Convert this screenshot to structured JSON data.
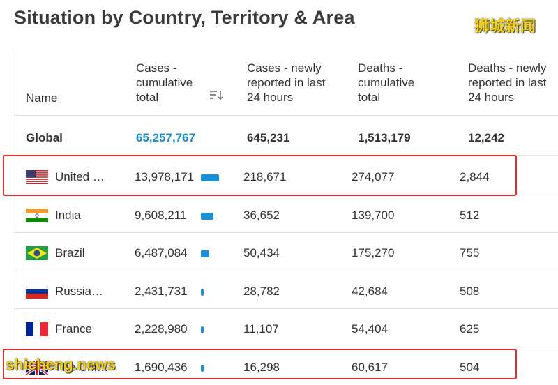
{
  "page": {
    "title": "Situation by Country, Territory & Area",
    "logo_text": "狮城新闻",
    "watermark": "shicheng.news"
  },
  "colors": {
    "accent": "#1a8fcf",
    "bar": "#1a90d6",
    "highlight": "#e52d2d"
  },
  "table": {
    "headers": {
      "name": "Name",
      "cases_total": [
        "Cases -",
        "cumulative",
        "total"
      ],
      "cases_new": [
        "Cases - newly",
        "reported in last",
        "24 hours"
      ],
      "deaths_total": [
        "Deaths -",
        "cumulative",
        "total"
      ],
      "deaths_new": [
        "Deaths - newly",
        "reported in last",
        "24 hours"
      ]
    },
    "sort_icon": "sort-descending-icon",
    "global": {
      "name": "Global",
      "cases_total": "65,257,767",
      "cases_new": "645,231",
      "deaths_total": "1,513,179",
      "deaths_new": "12,242"
    },
    "rows": [
      {
        "flag": "us-flag-icon",
        "name": "United …",
        "cases_total": "13,978,171",
        "bar_fraction": 1.0,
        "cases_new": "218,671",
        "deaths_total": "274,077",
        "deaths_new": "2,844"
      },
      {
        "flag": "india-flag-icon",
        "name": "India",
        "cases_total": "9,608,211",
        "bar_fraction": 0.69,
        "cases_new": "36,652",
        "deaths_total": "139,700",
        "deaths_new": "512"
      },
      {
        "flag": "brazil-flag-icon",
        "name": "Brazil",
        "cases_total": "6,487,084",
        "bar_fraction": 0.46,
        "cases_new": "50,434",
        "deaths_total": "175,270",
        "deaths_new": "755"
      },
      {
        "flag": "russia-flag-icon",
        "name": "Russia…",
        "cases_total": "2,431,731",
        "bar_fraction": 0.17,
        "cases_new": "28,782",
        "deaths_total": "42,684",
        "deaths_new": "508"
      },
      {
        "flag": "france-flag-icon",
        "name": "France",
        "cases_total": "2,228,980",
        "bar_fraction": 0.16,
        "cases_new": "11,107",
        "deaths_total": "54,404",
        "deaths_new": "625"
      },
      {
        "flag": "uk-flag-icon",
        "name": "The Uni…",
        "cases_total": "1,690,436",
        "bar_fraction": 0.12,
        "cases_new": "16,298",
        "deaths_total": "60,617",
        "deaths_new": "504"
      }
    ]
  }
}
